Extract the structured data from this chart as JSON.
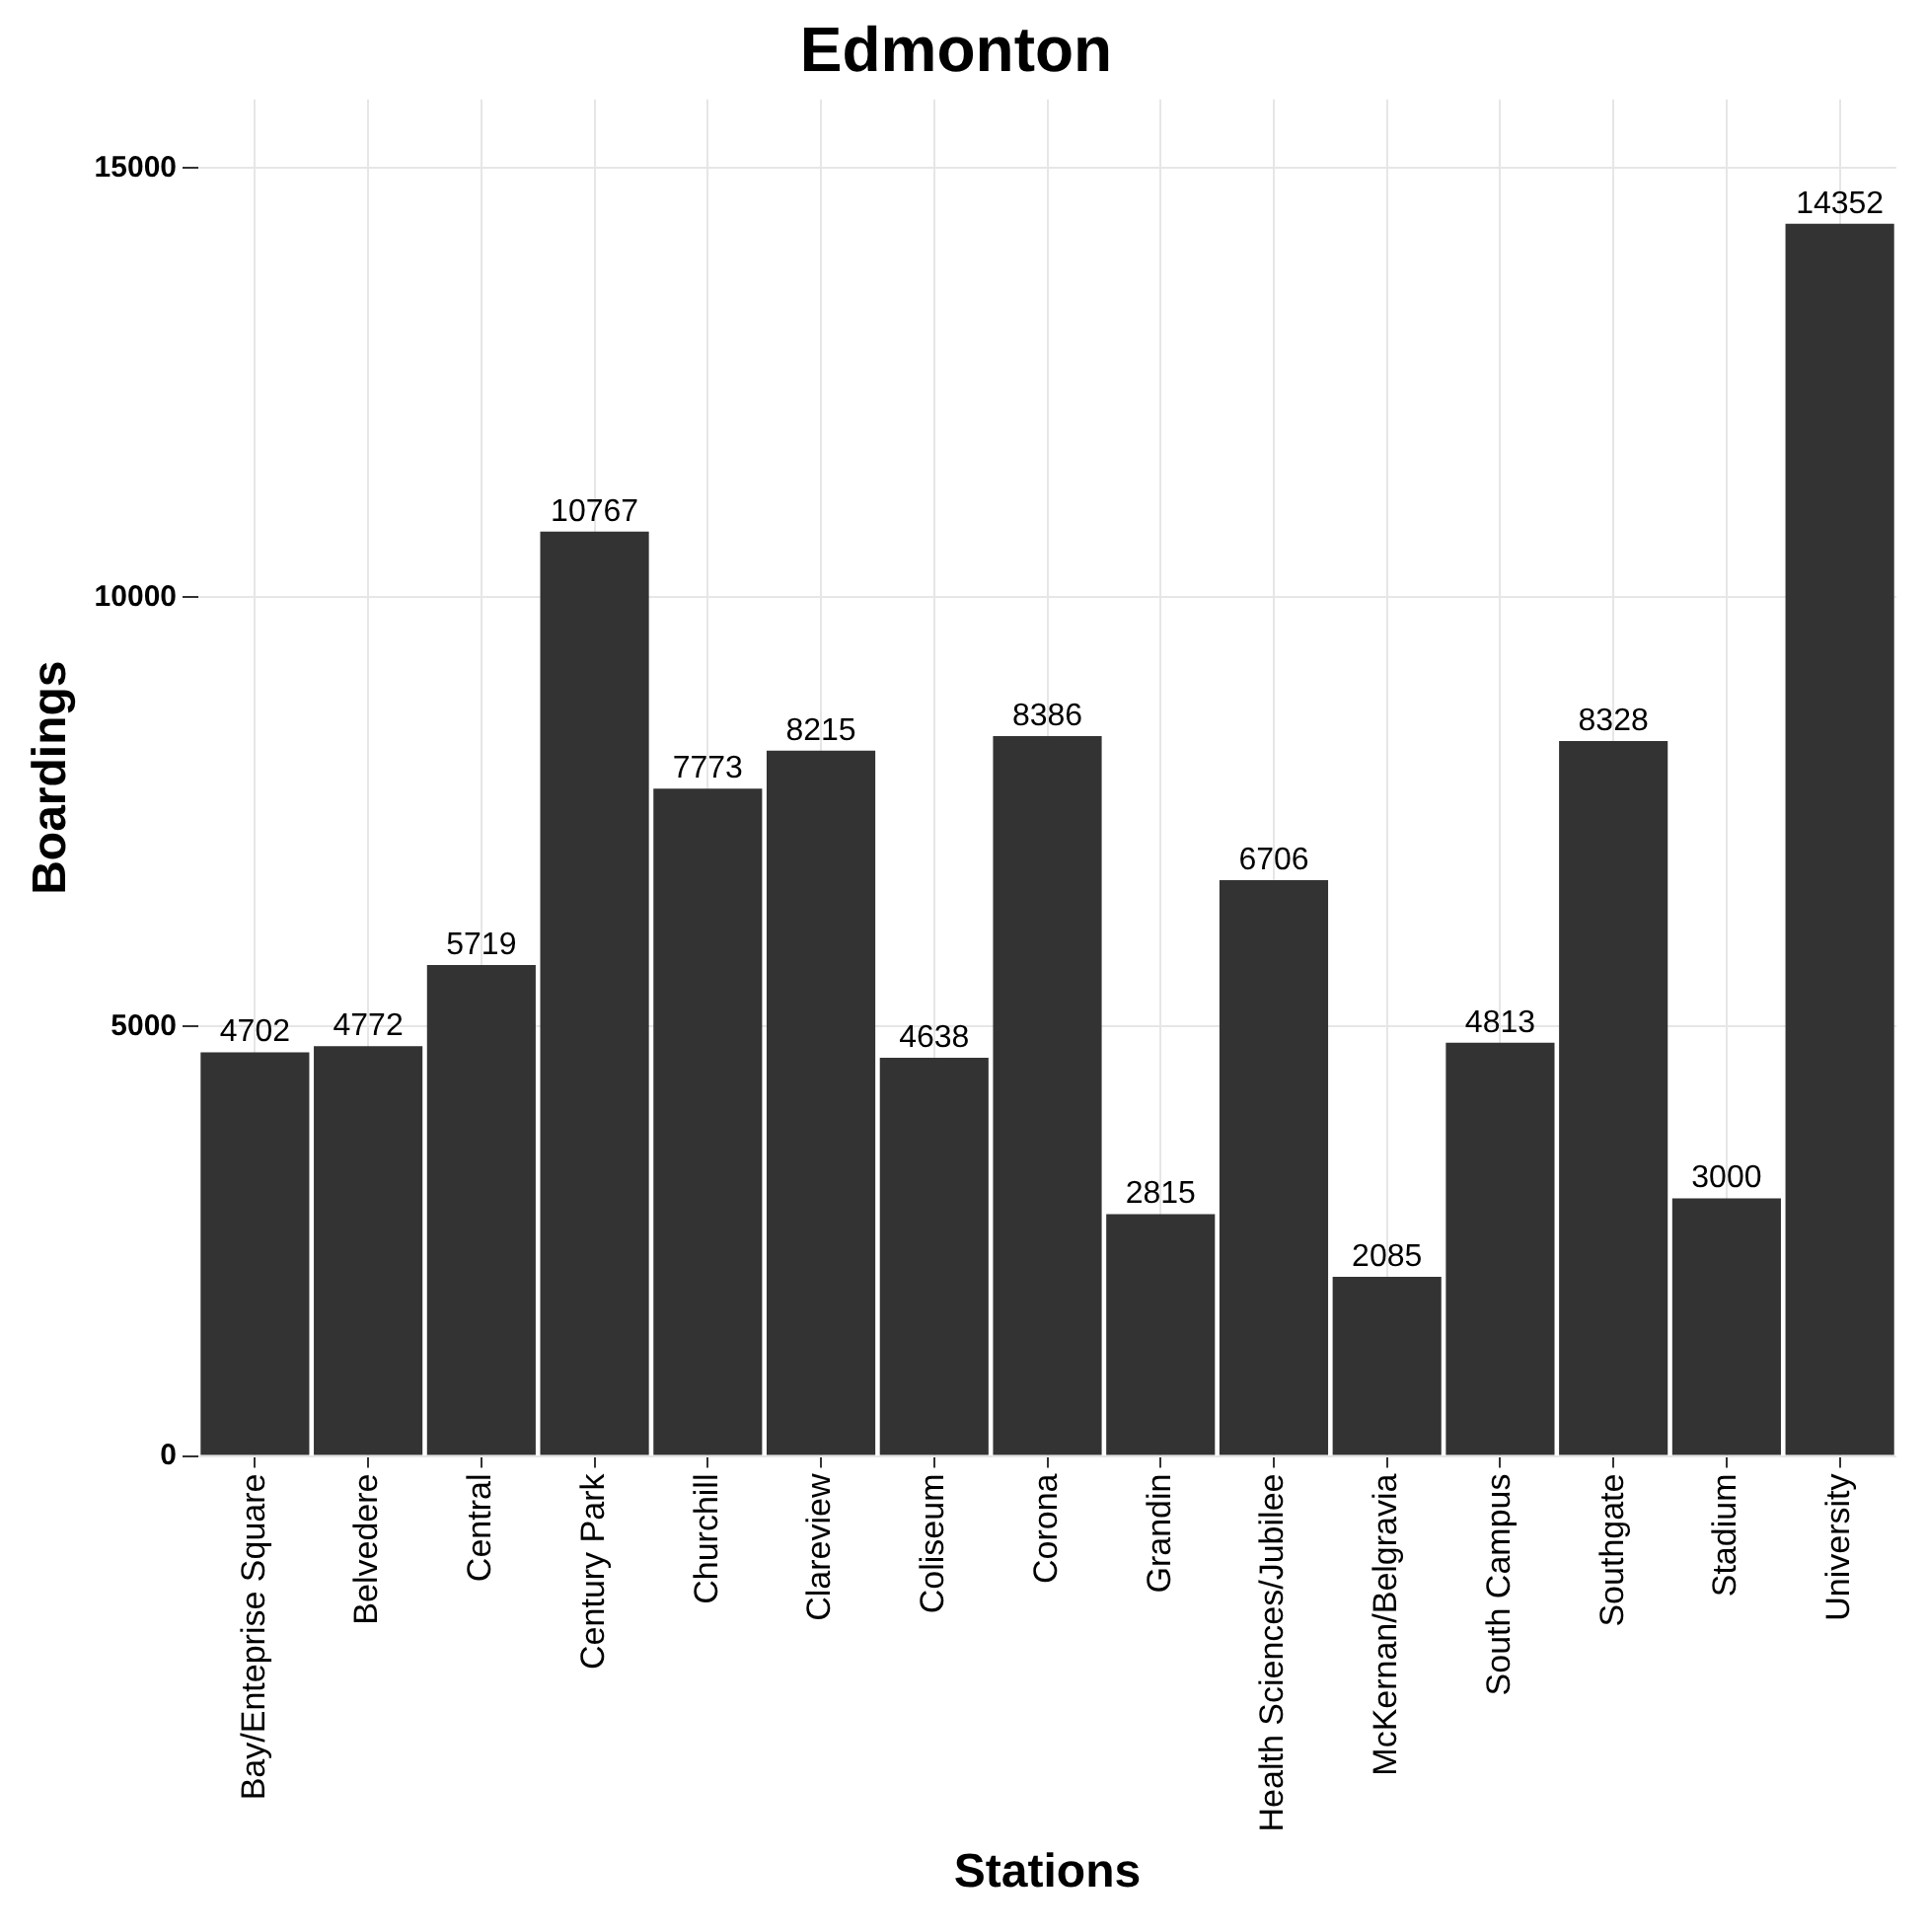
{
  "chart_data": {
    "type": "bar",
    "title": "Edmonton",
    "xlabel": "Stations",
    "ylabel": "Boardings",
    "categories": [
      "Bay/Enteprise Square",
      "Belvedere",
      "Central",
      "Century Park",
      "Churchill",
      "Clareview",
      "Coliseum",
      "Corona",
      "Grandin",
      "Health Sciences/Jubilee",
      "McKernan/Belgravia",
      "South Campus",
      "Southgate",
      "Stadium",
      "University"
    ],
    "values": [
      4702,
      4772,
      5719,
      10767,
      7773,
      8215,
      4638,
      8386,
      2815,
      6706,
      2085,
      4813,
      8328,
      3000,
      14352
    ],
    "color": "#333333",
    "ylim": [
      0,
      15800
    ],
    "yticks": [
      0,
      5000,
      10000,
      15000
    ],
    "grid": true,
    "data_labels": true
  }
}
